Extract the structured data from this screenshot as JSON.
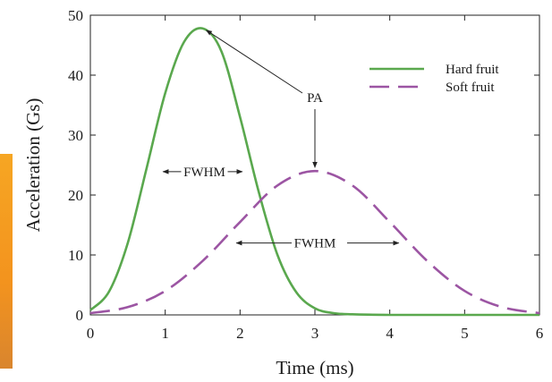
{
  "chart_data": {
    "type": "line",
    "title": "",
    "xlabel": "Time (ms)",
    "ylabel": "Acceleration (Gs)",
    "xlim": [
      0,
      6
    ],
    "ylim": [
      0,
      50
    ],
    "xticks": [
      "0",
      "1",
      "2",
      "3",
      "4",
      "5",
      "6"
    ],
    "yticks": [
      "0",
      "10",
      "20",
      "30",
      "40",
      "50"
    ],
    "grid": false,
    "legend_position": "top-right",
    "series": [
      {
        "name": "Hard fruit",
        "style": "solid",
        "color": "#5aa84e",
        "x": [
          0,
          0.25,
          0.5,
          0.75,
          1.0,
          1.25,
          1.5,
          1.75,
          2.0,
          2.25,
          2.5,
          2.75,
          3.0,
          3.25,
          3.5,
          4.0,
          4.5,
          5.0,
          5.5,
          6.0
        ],
        "y": [
          0.8,
          3.9,
          12.0,
          24.4,
          37.0,
          45.5,
          47.8,
          44.0,
          33.0,
          20.5,
          10.0,
          3.8,
          1.1,
          0.3,
          0.1,
          0,
          0,
          0,
          0,
          0
        ]
      },
      {
        "name": "Soft fruit",
        "style": "dashed",
        "color": "#9c55a3",
        "x": [
          0,
          0.5,
          1.0,
          1.5,
          2.0,
          2.5,
          3.0,
          3.5,
          4.0,
          4.5,
          5.0,
          5.5,
          6.0
        ],
        "y": [
          0.3,
          1.3,
          4.0,
          9.0,
          15.5,
          21.6,
          24.0,
          21.6,
          15.5,
          9.0,
          4.0,
          1.3,
          0.3
        ]
      }
    ],
    "annotations": [
      {
        "text": "PA"
      },
      {
        "text": "FWHM"
      },
      {
        "text": "FWHM"
      }
    ]
  }
}
